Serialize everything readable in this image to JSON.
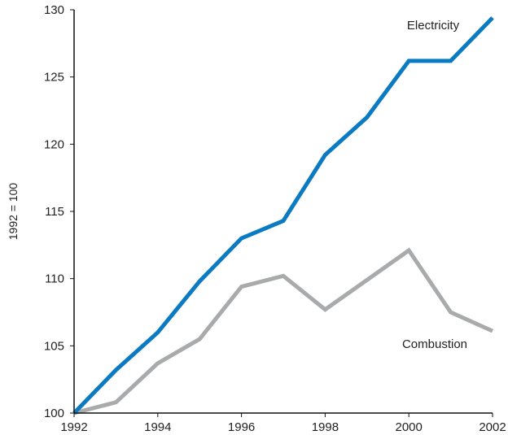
{
  "chart_data": {
    "type": "line",
    "title": "",
    "xlabel": "",
    "ylabel": "1992 = 100",
    "x": [
      1992,
      1993,
      1994,
      1995,
      1996,
      1997,
      1998,
      1999,
      2000,
      2001,
      2002
    ],
    "xticks": [
      "1992",
      "1994",
      "1996",
      "1998",
      "2000",
      "2002"
    ],
    "yticks": [
      "100",
      "105",
      "110",
      "115",
      "120",
      "125",
      "130"
    ],
    "xlim": [
      1992,
      2002
    ],
    "ylim": [
      100,
      130
    ],
    "grid": false,
    "legend": "none (series labeled inline)",
    "series": [
      {
        "name": "Electricity",
        "color": "#0a7bc2",
        "values": [
          100,
          103.2,
          106,
          109.8,
          113,
          114.3,
          119.2,
          122,
          126.2,
          126.2,
          129.4
        ]
      },
      {
        "name": "Combustion",
        "color": "#a9aaab",
        "values": [
          100,
          100.8,
          103.7,
          105.5,
          109.4,
          110.2,
          107.7,
          109.9,
          112.1,
          107.5,
          106.1
        ]
      }
    ]
  }
}
